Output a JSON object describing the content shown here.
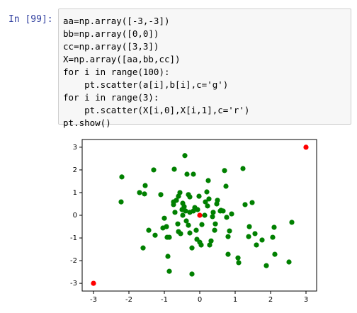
{
  "prompt": "In [99]:",
  "code": {
    "lines": [
      "aa=np.array([-3,-3])",
      "bb=np.array([0,0])",
      "cc=np.array([3,3])",
      "X=np.array([aa,bb,cc])",
      "for i in range(100):",
      "    pt.scatter(a[i],b[i],c='g')",
      "for i in range(3):",
      "    pt.scatter(X[i,0],X[i,1],c='r')",
      "pt.show()"
    ]
  },
  "chart_data": {
    "type": "scatter",
    "xlim": [
      -3.32,
      3.3
    ],
    "ylim": [
      -3.34,
      3.34
    ],
    "xticks": [
      -3,
      -2,
      -1,
      0,
      1,
      2,
      3
    ],
    "yticks": [
      -3,
      -2,
      -1,
      0,
      1,
      2,
      3
    ],
    "series": [
      {
        "color": "#008000",
        "x": [
          -2.2,
          -2.22,
          -1.7,
          -1.54,
          -1.56,
          -1.3,
          -1.44,
          -1.6,
          -1.26,
          -1.1,
          -1.04,
          -0.92,
          -1.0,
          -0.9,
          -0.86,
          -0.72,
          -0.86,
          -0.74,
          -0.66,
          -0.7,
          -0.56,
          -0.6,
          -0.48,
          -0.6,
          -0.54,
          -0.62,
          -0.42,
          -0.36,
          -0.5,
          -0.44,
          -0.48,
          -0.4,
          -0.32,
          -0.28,
          -0.38,
          -0.32,
          -0.28,
          -0.18,
          -0.18,
          -0.14,
          -0.22,
          -0.22,
          -0.1,
          -0.08,
          -0.02,
          -0.06,
          0,
          0.04,
          0.06,
          0.14,
          0.16,
          0.2,
          0.22,
          0.24,
          0.26,
          0.28,
          0.32,
          0.38,
          0.42,
          0.44,
          0.48,
          0.5,
          0.58,
          0.6,
          0.66,
          0.7,
          0.74,
          0.8,
          0.8,
          0.76,
          0.84,
          1.08,
          1.1,
          1.22,
          1.28,
          1.4,
          1.38,
          1.48,
          1.56,
          1.6,
          1.76,
          1.88,
          2.06,
          2.1,
          2.12,
          2.52,
          2.6,
          -0.94,
          0.36,
          -0.28,
          -0.74,
          0.9
        ],
        "y": [
          1.69,
          0.59,
          1.0,
          1.31,
          0.94,
          2.0,
          -0.66,
          -1.44,
          -0.88,
          0.91,
          -0.56,
          -0.97,
          -0.13,
          -1.81,
          -2.47,
          2.03,
          -0.97,
          0.59,
          0.66,
          0.13,
          1.0,
          0.84,
          0.53,
          -0.72,
          -0.81,
          -0.38,
          2.63,
          1.81,
          0.25,
          0.38,
          0,
          0.19,
          0.91,
          0.81,
          -0.25,
          -0.44,
          -0.78,
          1.81,
          0.19,
          0.34,
          -1.44,
          -2.59,
          -0.66,
          -1.06,
          0.84,
          0.25,
          -1.19,
          -1.31,
          -0.41,
          0,
          0.59,
          1.03,
          0.41,
          1.53,
          0.72,
          -1.31,
          -1.13,
          0.13,
          -0.66,
          -0.38,
          0.5,
          0.66,
          0.19,
          0.22,
          0.19,
          1.97,
          1.28,
          -0.94,
          -1.72,
          -0.09,
          -0.69,
          -1.88,
          -2.09,
          2.06,
          0.47,
          -0.5,
          -0.94,
          0.56,
          -0.81,
          -1.31,
          -1.09,
          -2.22,
          -0.97,
          -0.53,
          -1.72,
          -2.06,
          -0.31,
          -0.5,
          -0.06,
          0.13,
          0.47,
          0.06
        ]
      },
      {
        "color": "#ff0000",
        "x": [
          -3,
          0,
          3
        ],
        "y": [
          -3,
          0,
          3
        ]
      }
    ]
  }
}
